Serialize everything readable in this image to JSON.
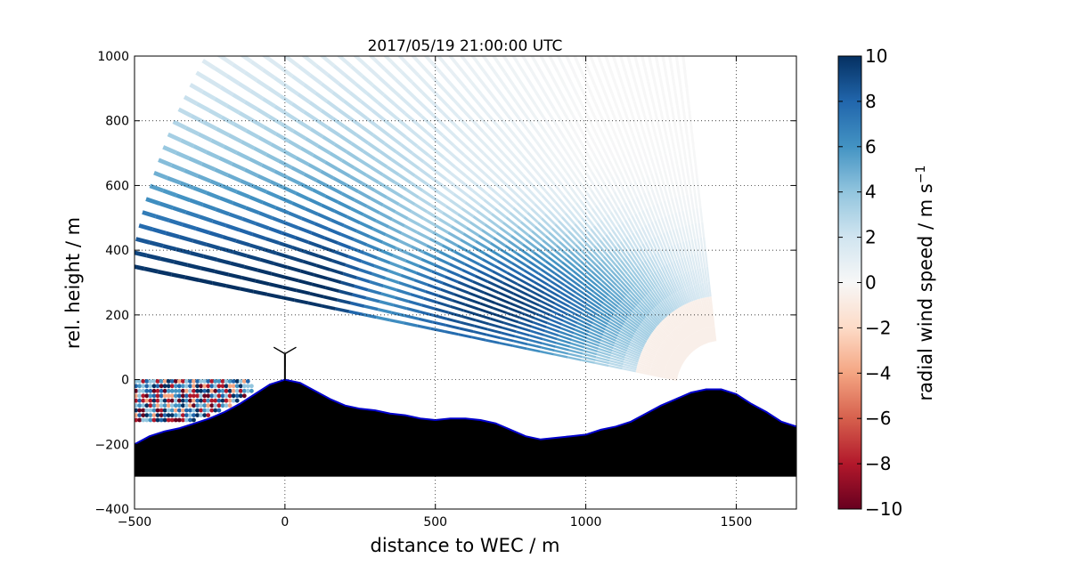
{
  "chart_data": {
    "type": "heatmap",
    "title": "2017/05/19 21:00:00 UTC",
    "xlabel": "distance to WEC / m",
    "ylabel": "rel. height / m",
    "xlim": [
      -500,
      1700
    ],
    "ylim": [
      -400,
      1000
    ],
    "xticks": [
      -500,
      0,
      500,
      1000,
      1500
    ],
    "yticks": [
      -400,
      -200,
      0,
      200,
      400,
      600,
      800,
      1000
    ],
    "xtick_labels": [
      "−500",
      "0",
      "500",
      "1000",
      "1500"
    ],
    "ytick_labels": [
      "−400",
      "−200",
      "0",
      "200",
      "400",
      "600",
      "800",
      "1000"
    ],
    "grid": true,
    "colorbar": {
      "label": "radial wind speed / m s",
      "label_superscript": "−1",
      "range": [
        -10,
        10
      ],
      "ticks": [
        -10,
        -8,
        -6,
        -4,
        -2,
        0,
        2,
        4,
        6,
        8,
        10
      ],
      "tick_labels": [
        "−10",
        "−8",
        "−6",
        "−4",
        "−2",
        "0",
        "2",
        "4",
        "6",
        "8",
        "10"
      ],
      "colormap": "RdBu",
      "colors": [
        "#67001f",
        "#b2182b",
        "#d6604d",
        "#f4a582",
        "#fddbc7",
        "#f7f7f7",
        "#d1e5f0",
        "#92c5de",
        "#4393c3",
        "#2166ac",
        "#053061"
      ]
    },
    "scan": {
      "origin": [
        1450,
        -30
      ],
      "min_range_m": 150,
      "max_range_m": 2000,
      "azimuth_start_deg": 97,
      "azimuth_end_deg": 169,
      "description_free": true
    },
    "terrain": {
      "x": [
        -500,
        -450,
        -400,
        -350,
        -300,
        -250,
        -200,
        -150,
        -100,
        -50,
        0,
        50,
        100,
        150,
        200,
        250,
        300,
        350,
        400,
        450,
        500,
        550,
        600,
        650,
        700,
        750,
        800,
        850,
        900,
        950,
        1000,
        1050,
        1100,
        1150,
        1200,
        1250,
        1300,
        1350,
        1400,
        1450,
        1500,
        1550,
        1600,
        1650,
        1700
      ],
      "y": [
        -200,
        -175,
        -160,
        -150,
        -135,
        -120,
        -100,
        -75,
        -45,
        -15,
        0,
        -10,
        -35,
        -60,
        -80,
        -90,
        -95,
        -105,
        -110,
        -120,
        -125,
        -120,
        -120,
        -125,
        -135,
        -155,
        -175,
        -185,
        -180,
        -175,
        -170,
        -155,
        -145,
        -130,
        -105,
        -80,
        -60,
        -40,
        -30,
        -30,
        -45,
        -75,
        -100,
        -130,
        -145
      ],
      "floor": -300,
      "edge_color": "#0000cc"
    },
    "turbine": {
      "x": 0,
      "hub_height": 80,
      "rotor_radius": 40
    }
  }
}
